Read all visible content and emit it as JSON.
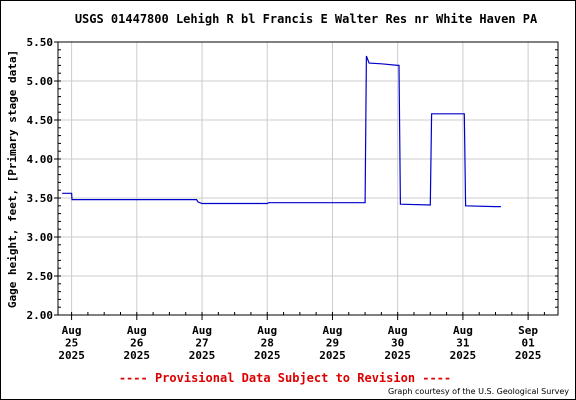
{
  "footer": {
    "provisional_notice": "---- Provisional Data Subject to Revision ----",
    "credit": "Graph courtesy of the U.S. Geological Survey"
  },
  "colors": {
    "series": "#0000cc",
    "notice": "#dd0000",
    "grid": "#cccccc"
  },
  "chart_data": {
    "type": "line",
    "title": "USGS 01447800 Lehigh R bl Francis E Walter Res nr White Haven PA",
    "xlabel": "",
    "ylabel": "Gage height, feet, [Primary stage data]",
    "ylim": [
      2.0,
      5.5
    ],
    "yticks": [
      "2.00",
      "2.50",
      "3.00",
      "3.50",
      "4.00",
      "4.50",
      "5.00",
      "5.50"
    ],
    "xlim": [
      "2025-08-25 00:00",
      "2025-09-01 00:00"
    ],
    "xticks": [
      {
        "month": "Aug",
        "day": "25",
        "year": "2025"
      },
      {
        "month": "Aug",
        "day": "26",
        "year": "2025"
      },
      {
        "month": "Aug",
        "day": "27",
        "year": "2025"
      },
      {
        "month": "Aug",
        "day": "28",
        "year": "2025"
      },
      {
        "month": "Aug",
        "day": "29",
        "year": "2025"
      },
      {
        "month": "Aug",
        "day": "30",
        "year": "2025"
      },
      {
        "month": "Aug",
        "day": "31",
        "year": "2025"
      },
      {
        "month": "Sep",
        "day": "01",
        "year": "2025"
      }
    ],
    "grid": true,
    "series": [
      {
        "points": [
          [
            "2025-08-24 20:30",
            3.56
          ],
          [
            "2025-08-25 00:00",
            3.56
          ],
          [
            "2025-08-25 00:10",
            3.48
          ],
          [
            "2025-08-26 00:00",
            3.48
          ],
          [
            "2025-08-26 22:00",
            3.48
          ],
          [
            "2025-08-26 22:30",
            3.45
          ],
          [
            "2025-08-27 00:00",
            3.43
          ],
          [
            "2025-08-28 00:00",
            3.43
          ],
          [
            "2025-08-28 00:30",
            3.44
          ],
          [
            "2025-08-29 00:00",
            3.44
          ],
          [
            "2025-08-29 12:00",
            3.44
          ],
          [
            "2025-08-29 12:30",
            5.32
          ],
          [
            "2025-08-29 13:30",
            5.23
          ],
          [
            "2025-08-29 18:00",
            5.22
          ],
          [
            "2025-08-30 00:00",
            5.2
          ],
          [
            "2025-08-30 00:30",
            5.2
          ],
          [
            "2025-08-30 01:00",
            3.42
          ],
          [
            "2025-08-30 12:00",
            3.41
          ],
          [
            "2025-08-30 12:30",
            4.58
          ],
          [
            "2025-08-31 00:00",
            4.58
          ],
          [
            "2025-08-31 00:30",
            4.58
          ],
          [
            "2025-08-31 01:00",
            3.4
          ],
          [
            "2025-08-31 12:00",
            3.39
          ],
          [
            "2025-08-31 14:00",
            3.39
          ]
        ]
      }
    ]
  }
}
